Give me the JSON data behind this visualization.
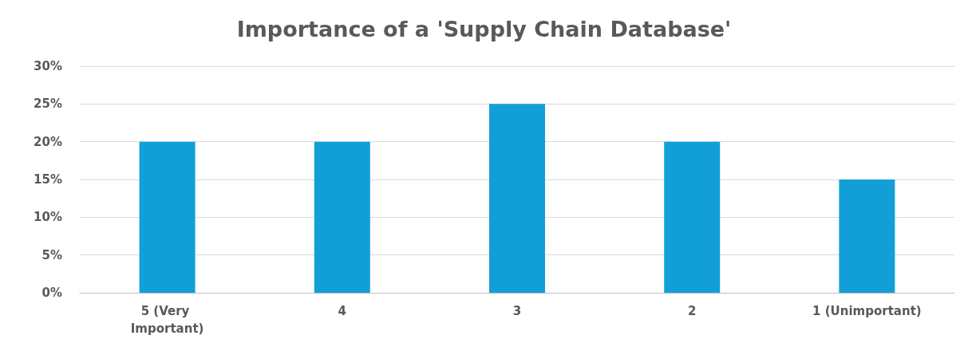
{
  "chart_data": {
    "type": "bar",
    "title": "Importance of a 'Supply Chain Database'",
    "categories": [
      "5 (Very Important)",
      "4",
      "3",
      "2",
      "1 (Unimportant)"
    ],
    "values": [
      20,
      20,
      25,
      20,
      15
    ],
    "color": "#129fd8",
    "ylim": [
      0,
      30
    ],
    "yticks": [
      {
        "value": 0,
        "label": "0%"
      },
      {
        "value": 5,
        "label": "5%"
      },
      {
        "value": 10,
        "label": "10%"
      },
      {
        "value": 15,
        "label": "15%"
      },
      {
        "value": 20,
        "label": "20%"
      },
      {
        "value": 25,
        "label": "25%"
      },
      {
        "value": 30,
        "label": "30%"
      }
    ],
    "grid": "y"
  }
}
